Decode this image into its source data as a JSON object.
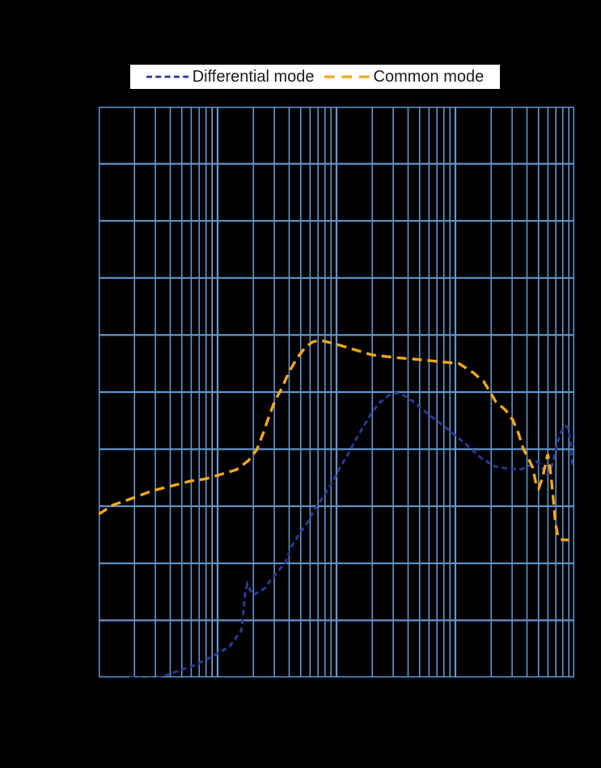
{
  "page": {
    "background": "#000000"
  },
  "legend": {
    "background": "#ffffff",
    "text_color": "#1c1c1c",
    "items": [
      {
        "label": "Differential mode",
        "color": "#2a3a96",
        "dash": [
          7,
          4.3
        ],
        "stroke_width": 2.8,
        "swatch_width": 53
      },
      {
        "label": "Common mode",
        "color": "#f2a81e",
        "dash": [
          12.5,
          9
        ],
        "stroke_width": 3.3,
        "swatch_width": 57
      }
    ]
  },
  "chart_data": {
    "type": "line",
    "title": "",
    "x_axis": {
      "scale": "log",
      "decades": 4,
      "tick_labels_visible": false,
      "label": ""
    },
    "y_axis": {
      "scale": "linear-grid",
      "rows": 10,
      "tick_labels_visible": false,
      "label": ""
    },
    "grid": {
      "color": "#6496cb",
      "minor_width": 1.6,
      "major_width": 2.2,
      "border_width": 3,
      "highlight_minor": {
        "decade": 0,
        "mult": 9,
        "color": "#98a3e0",
        "width": 1.6
      }
    },
    "series": [
      {
        "name": "Differential mode",
        "color": "#2a3a96",
        "dash": [
          6.5,
          4.5
        ],
        "width": 3,
        "points_units": "[x in log decades 0-4, y in grid rows from top 0-10]",
        "points": [
          [
            0.26,
            9.99
          ],
          [
            0.38,
            10.02
          ],
          [
            0.5,
            10.01
          ],
          [
            0.62,
            9.92
          ],
          [
            0.8,
            9.79
          ],
          [
            0.94,
            9.65
          ],
          [
            1.1,
            9.46
          ],
          [
            1.16,
            9.29
          ],
          [
            1.2,
            9.18
          ],
          [
            1.22,
            8.82
          ],
          [
            1.23,
            8.54
          ],
          [
            1.25,
            8.36
          ],
          [
            1.27,
            8.45
          ],
          [
            1.3,
            8.55
          ],
          [
            1.35,
            8.5
          ],
          [
            1.4,
            8.43
          ],
          [
            1.44,
            8.31
          ],
          [
            1.5,
            8.16
          ],
          [
            1.57,
            7.99
          ],
          [
            1.62,
            7.71
          ],
          [
            1.69,
            7.48
          ],
          [
            1.76,
            7.27
          ],
          [
            1.82,
            7.04
          ],
          [
            1.89,
            6.83
          ],
          [
            1.96,
            6.6
          ],
          [
            2.03,
            6.32
          ],
          [
            2.1,
            6.08
          ],
          [
            2.16,
            5.84
          ],
          [
            2.23,
            5.59
          ],
          [
            2.3,
            5.35
          ],
          [
            2.37,
            5.17
          ],
          [
            2.44,
            5.06
          ],
          [
            2.5,
            5.01
          ],
          [
            2.57,
            5.06
          ],
          [
            2.64,
            5.16
          ],
          [
            2.78,
            5.4
          ],
          [
            2.93,
            5.64
          ],
          [
            3.07,
            5.88
          ],
          [
            3.22,
            6.16
          ],
          [
            3.33,
            6.3
          ],
          [
            3.46,
            6.35
          ],
          [
            3.56,
            6.35
          ],
          [
            3.64,
            6.27
          ],
          [
            3.68,
            6.22
          ],
          [
            3.71,
            6.26
          ],
          [
            3.74,
            6.37
          ],
          [
            3.76,
            6.45
          ],
          [
            3.8,
            6.39
          ],
          [
            3.82,
            6.23
          ],
          [
            3.84,
            6.06
          ],
          [
            3.86,
            5.88
          ],
          [
            3.88,
            5.74
          ],
          [
            3.91,
            5.61
          ],
          [
            3.93,
            5.6
          ],
          [
            3.945,
            5.61
          ],
          [
            3.955,
            5.71
          ],
          [
            3.97,
            5.88
          ],
          [
            3.975,
            6.09
          ],
          [
            3.98,
            6.23
          ],
          [
            3.99,
            6.29
          ]
        ]
      },
      {
        "name": "Common mode",
        "color": "#f2a81e",
        "dash": [
          12,
          7
        ],
        "width": 3.4,
        "points_units": "[x in log decades 0-4, y in grid rows from top 0-10]",
        "points": [
          [
            0.0,
            7.14
          ],
          [
            0.12,
            6.98
          ],
          [
            0.27,
            6.87
          ],
          [
            0.45,
            6.73
          ],
          [
            0.62,
            6.64
          ],
          [
            0.77,
            6.56
          ],
          [
            0.9,
            6.52
          ],
          [
            1.03,
            6.44
          ],
          [
            1.16,
            6.36
          ],
          [
            1.26,
            6.2
          ],
          [
            1.33,
            6.01
          ],
          [
            1.38,
            5.74
          ],
          [
            1.43,
            5.44
          ],
          [
            1.48,
            5.16
          ],
          [
            1.54,
            4.93
          ],
          [
            1.6,
            4.65
          ],
          [
            1.67,
            4.4
          ],
          [
            1.74,
            4.21
          ],
          [
            1.8,
            4.12
          ],
          [
            1.86,
            4.09
          ],
          [
            1.92,
            4.12
          ],
          [
            2.03,
            4.18
          ],
          [
            2.14,
            4.25
          ],
          [
            2.3,
            4.35
          ],
          [
            2.47,
            4.39
          ],
          [
            2.64,
            4.42
          ],
          [
            2.84,
            4.46
          ],
          [
            3.03,
            4.5
          ],
          [
            3.15,
            4.66
          ],
          [
            3.24,
            4.82
          ],
          [
            3.34,
            5.17
          ],
          [
            3.42,
            5.31
          ],
          [
            3.48,
            5.48
          ],
          [
            3.53,
            5.72
          ],
          [
            3.57,
            5.99
          ],
          [
            3.61,
            6.15
          ],
          [
            3.65,
            6.32
          ],
          [
            3.68,
            6.63
          ],
          [
            3.7,
            6.69
          ],
          [
            3.73,
            6.52
          ],
          [
            3.755,
            6.29
          ],
          [
            3.776,
            6.09
          ],
          [
            3.79,
            6.23
          ],
          [
            3.81,
            6.59
          ],
          [
            3.83,
            7.03
          ],
          [
            3.84,
            7.27
          ],
          [
            3.86,
            7.51
          ],
          [
            3.88,
            7.58
          ],
          [
            3.92,
            7.59
          ],
          [
            3.95,
            7.59
          ]
        ]
      }
    ]
  }
}
